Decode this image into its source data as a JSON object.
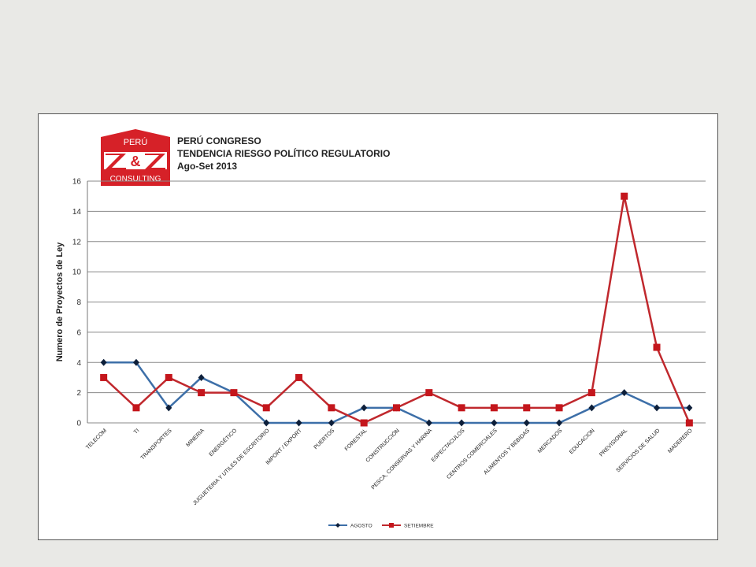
{
  "logo": {
    "country": "PERÚ",
    "mark": "Z&Z",
    "text": "CONSULTING",
    "color": "#d62128"
  },
  "chart_data": {
    "type": "line",
    "title_lines": [
      "PERÚ CONGRESO",
      "TENDENCIA RIESGO POLÍTICO REGULATORIO",
      "Ago-Set 2013"
    ],
    "xlabel": "",
    "ylabel": "Numero de Proyectos de Ley",
    "ylim": [
      0,
      16
    ],
    "yticks": [
      0,
      2,
      4,
      6,
      8,
      10,
      12,
      14,
      16
    ],
    "grid": true,
    "legend_position": "bottom-center",
    "categories": [
      "TELECOM",
      "TI",
      "TRANSPORTES",
      "MINERIA",
      "ENERGÉTICO",
      "JUGUETERIA Y UTILES DE ESCRITORIO",
      "IMPORT / EXPORT",
      "PUERTOS",
      "FORESTAL",
      "CONSTRUCCIÓN",
      "PESCA, CONSERVAS Y HARINA",
      "ESPECTACULOS",
      "CENTROS COMERCIALES",
      "ALIMENTOS Y BEBIDAS",
      "MERCADOS",
      "EDUCACION",
      "PREVISIONAL",
      "SERVICIOS DE SALUD",
      "MADERERO"
    ],
    "series": [
      {
        "name": "AGOSTO",
        "color": "#3d6fa8",
        "marker": "diamond",
        "values": [
          4,
          4,
          1,
          3,
          2,
          0,
          0,
          0,
          1,
          1,
          0,
          0,
          0,
          0,
          0,
          1,
          2,
          1,
          1
        ]
      },
      {
        "name": "SETIEMBRE",
        "color": "#c0282d",
        "marker": "square",
        "values": [
          3,
          1,
          3,
          2,
          2,
          1,
          3,
          1,
          0,
          1,
          2,
          1,
          1,
          1,
          1,
          2,
          15,
          5,
          0
        ]
      }
    ]
  }
}
